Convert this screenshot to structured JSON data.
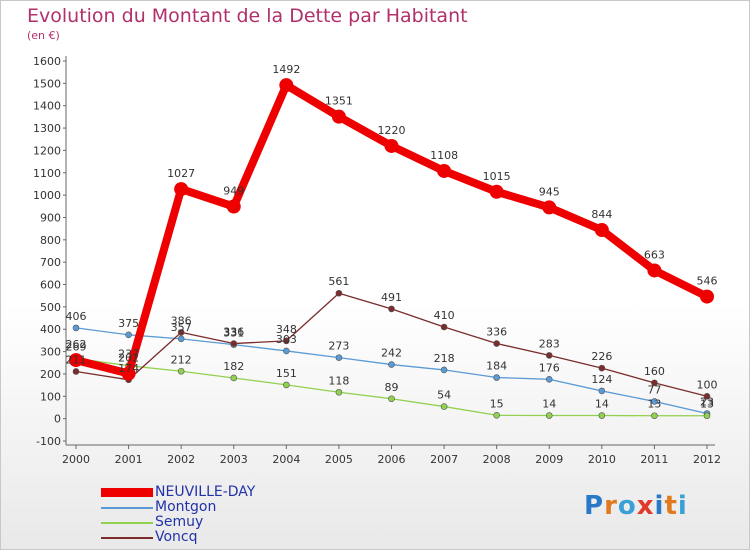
{
  "header": {
    "title": "Evolution du Montant de la Dette par Habitant",
    "subtitle": "(en €)"
  },
  "logo": {
    "text": "Proxiti",
    "colors": [
      "#2a78c8",
      "#e07a1f",
      "#3aa1d8",
      "#e03a2a",
      "#2a78c8",
      "#e07a1f",
      "#3aa1d8"
    ]
  },
  "chart_data": {
    "type": "line",
    "title": "Evolution du Montant de la Dette par Habitant",
    "subtitle": "(en €)",
    "xlabel": "",
    "ylabel": "",
    "ylim": [
      -100,
      1600
    ],
    "y_ticks": [
      -100,
      0,
      100,
      200,
      300,
      400,
      500,
      600,
      700,
      800,
      900,
      1000,
      1100,
      1200,
      1300,
      1400,
      1500,
      1600
    ],
    "categories": [
      "2000",
      "2001",
      "2002",
      "2003",
      "2004",
      "2005",
      "2006",
      "2007",
      "2008",
      "2009",
      "2010",
      "2011",
      "2012"
    ],
    "grid": false,
    "legend_position": "bottom-left",
    "series": [
      {
        "name": "NEUVILLE-DAY",
        "color": "#ee0000",
        "values": [
          262,
          202,
          1027,
          949,
          1492,
          1351,
          1220,
          1108,
          1015,
          945,
          844,
          663,
          546
        ],
        "labels": [
          "262",
          "202",
          "1027",
          "949",
          "1492",
          "1351",
          "1220",
          "1108",
          "1015",
          "945",
          "844",
          "663",
          "546"
        ]
      },
      {
        "name": "Montgon",
        "color": "#5b9bd5",
        "values": [
          406,
          375,
          357,
          331,
          303,
          273,
          242,
          218,
          184,
          176,
          124,
          77,
          23
        ],
        "labels": [
          "406",
          "375",
          "357",
          "331",
          "303",
          "273",
          "242",
          "218",
          "184",
          "176",
          "124",
          "77",
          "23"
        ]
      },
      {
        "name": "Semuy",
        "color": "#92d050",
        "values": [
          269,
          237,
          212,
          182,
          151,
          118,
          89,
          54,
          15,
          14,
          14,
          13,
          13
        ],
        "labels": [
          "269",
          "237",
          "212",
          "182",
          "151",
          "118",
          "89",
          "54",
          "15",
          "14",
          "14",
          "13",
          "13"
        ]
      },
      {
        "name": "Voncq",
        "color": "#7b2c2c",
        "values": [
          211,
          174,
          386,
          336,
          348,
          561,
          491,
          410,
          336,
          283,
          226,
          160,
          100
        ],
        "labels": [
          "211",
          "174",
          "386",
          "336",
          "348",
          "561",
          "491",
          "410",
          "336",
          "283",
          "226",
          "160",
          "100"
        ]
      }
    ]
  }
}
